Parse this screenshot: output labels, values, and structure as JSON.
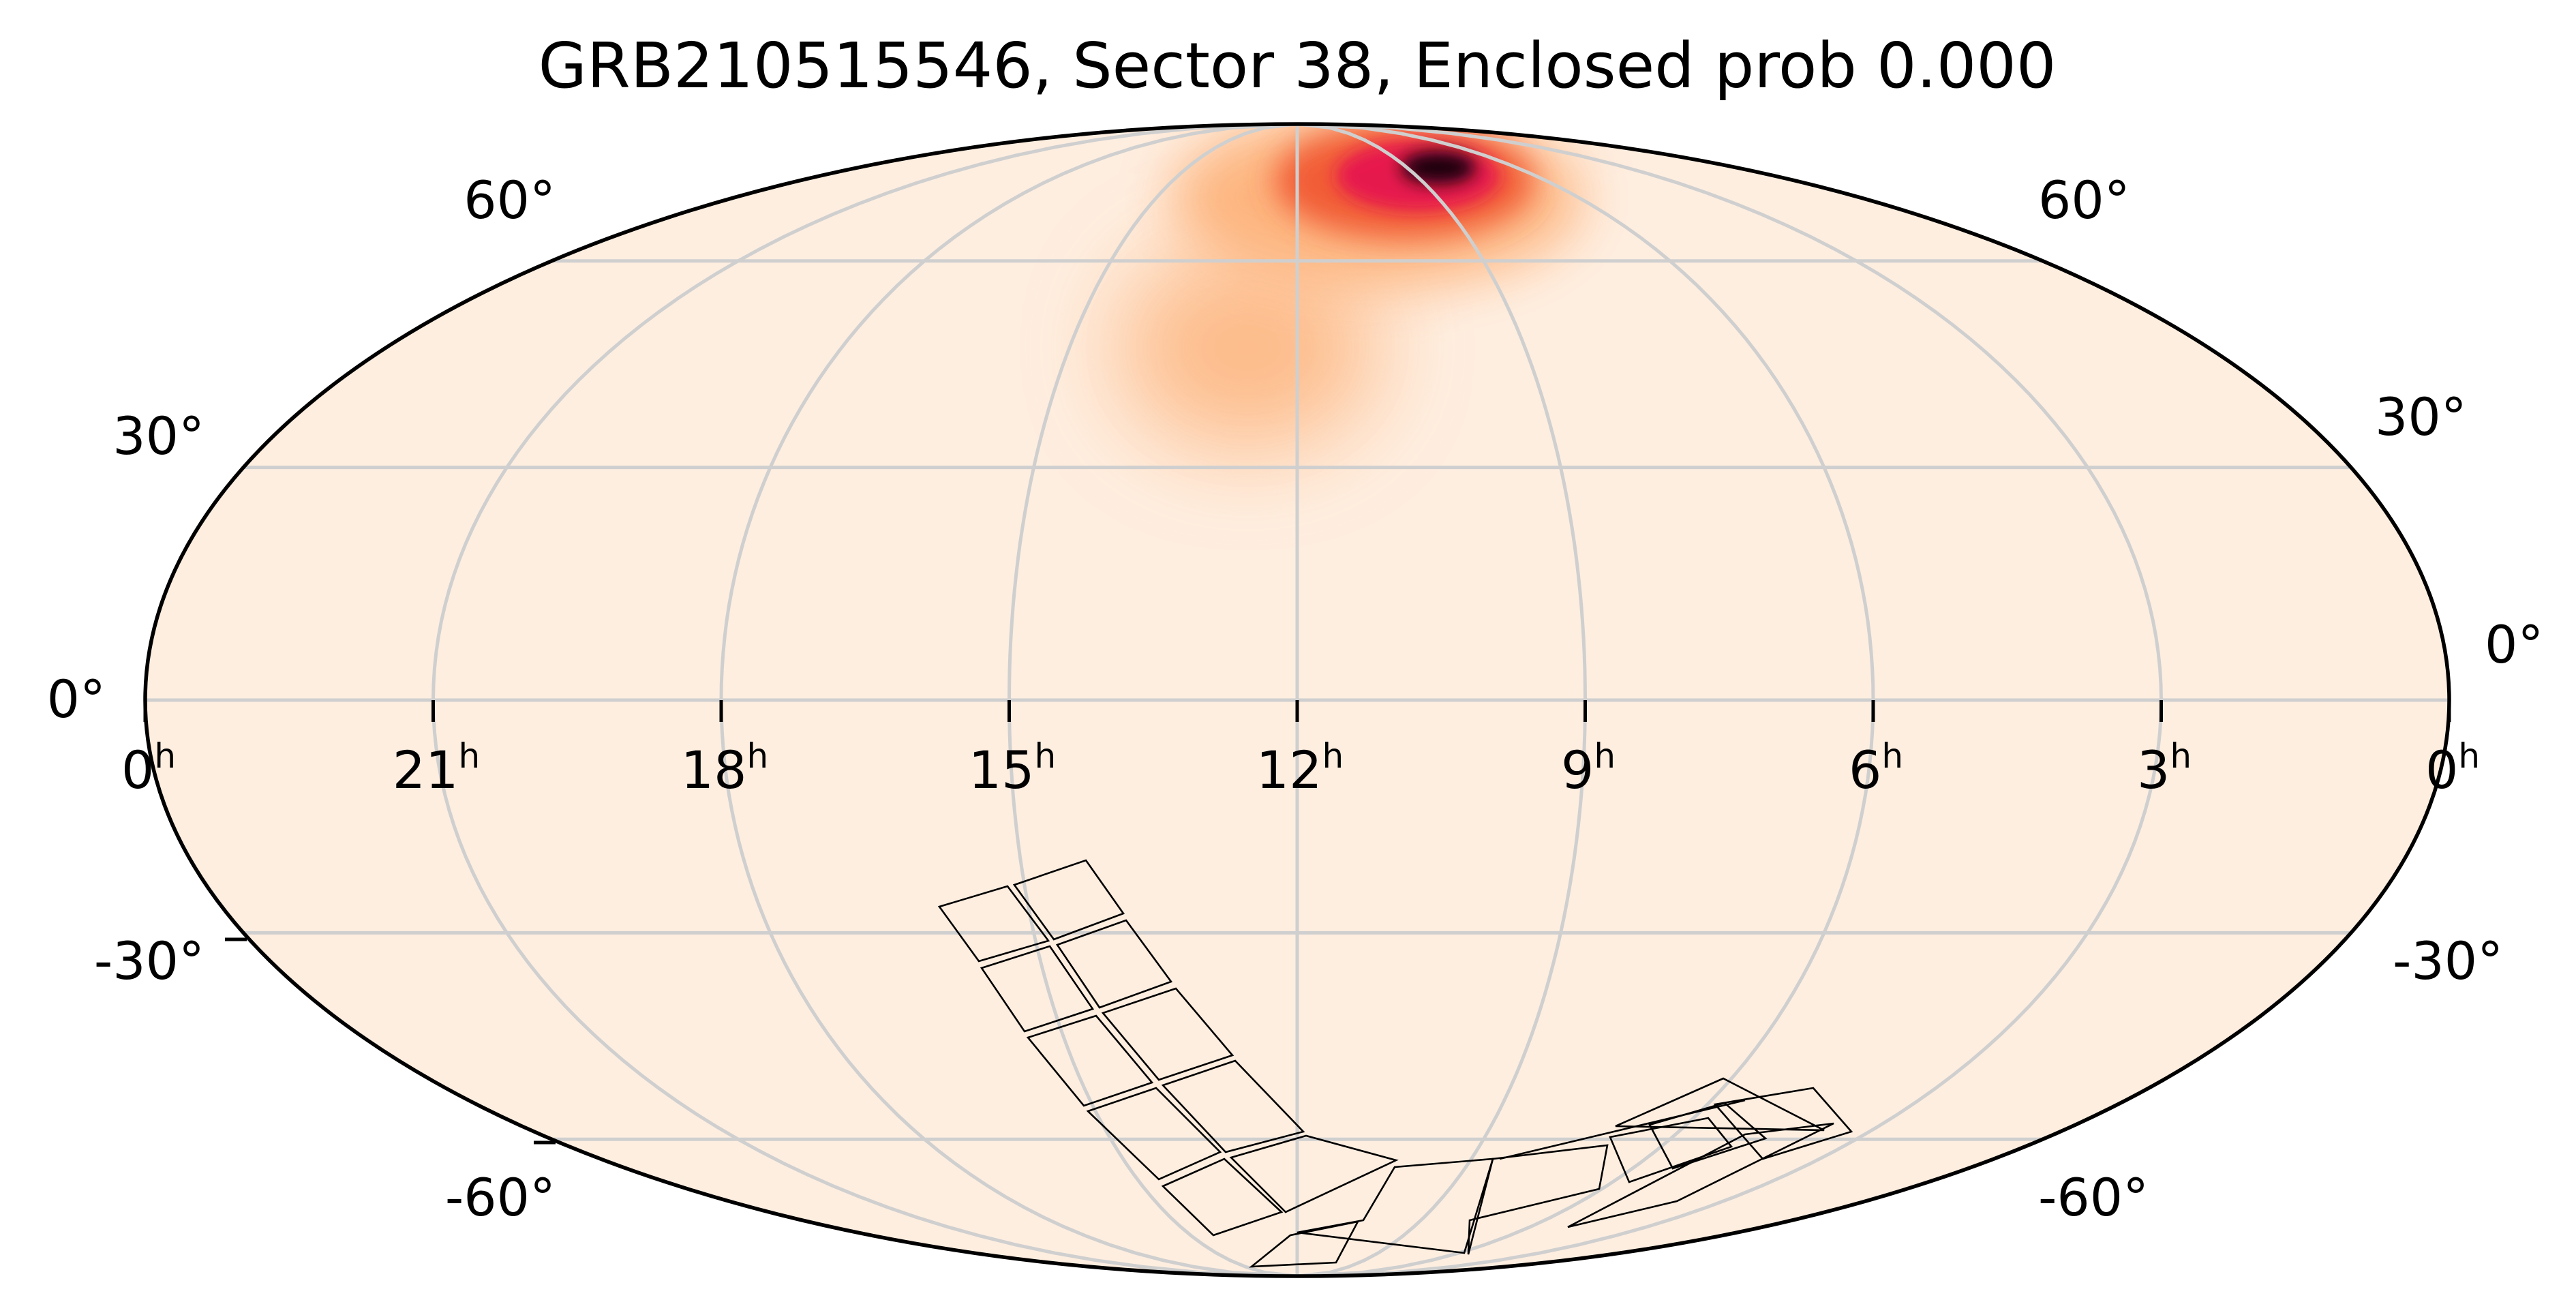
{
  "title": "GRB210515546, Sector 38, Enclosed prob 0.000",
  "projection": "mollweide",
  "colors": {
    "background": "#feeee0",
    "grid": "#cfcfcf",
    "frame": "#000000",
    "heat_low": "#fdb27a",
    "heat_mid": "#f0532f",
    "heat_high": "#e6134f",
    "heat_peak": "#1a0208"
  },
  "ra_labels": [
    {
      "hours": "0",
      "sup": "h"
    },
    {
      "hours": "21",
      "sup": "h"
    },
    {
      "hours": "18",
      "sup": "h"
    },
    {
      "hours": "15",
      "sup": "h"
    },
    {
      "hours": "12",
      "sup": "h"
    },
    {
      "hours": "9",
      "sup": "h"
    },
    {
      "hours": "6",
      "sup": "h"
    },
    {
      "hours": "3",
      "sup": "h"
    },
    {
      "hours": "0",
      "sup": "h"
    }
  ],
  "dec_labels_left": [
    "60°",
    "30°",
    "0°",
    "-30°",
    "-60°"
  ],
  "dec_labels_right": [
    "60°",
    "30°",
    "0°",
    "-30°",
    "-60°"
  ],
  "probability_hotspot": {
    "ra_hours": 10.5,
    "dec_deg": 77
  },
  "sector": "38",
  "enclosed_prob": "0.000"
}
